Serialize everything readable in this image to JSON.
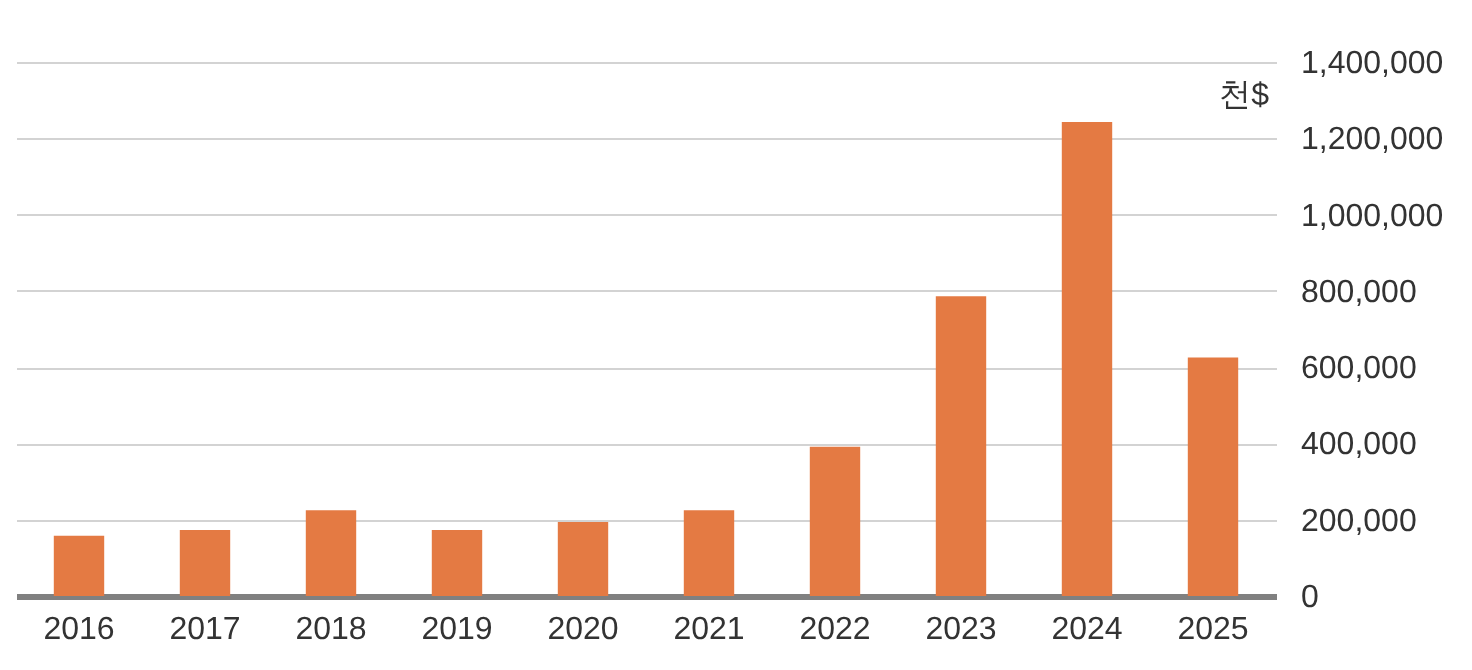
{
  "chart_data": {
    "type": "bar",
    "ylabel": "천$",
    "categories": [
      "2016",
      "2017",
      "2018",
      "2019",
      "2020",
      "2021",
      "2022",
      "2023",
      "2024",
      "2025"
    ],
    "values": [
      158000,
      173000,
      225000,
      173000,
      194000,
      225000,
      391000,
      786000,
      1243000,
      625000
    ],
    "color": "#e47a43",
    "ylim": [
      0,
      1400000
    ],
    "yticks": [
      0,
      {
        "value": 200000,
        "label": "200,000"
      },
      {
        "value": 400000,
        "label": "400,000"
      },
      {
        "value": 600000,
        "label": "600,000"
      },
      {
        "value": 800000,
        "label": "800,000"
      },
      {
        "value": 1000000,
        "label": "1,000,000"
      },
      {
        "value": 1200000,
        "label": "1,200,000"
      },
      {
        "value": 1400000,
        "label": "1,400,000"
      }
    ],
    "grid": "y"
  }
}
